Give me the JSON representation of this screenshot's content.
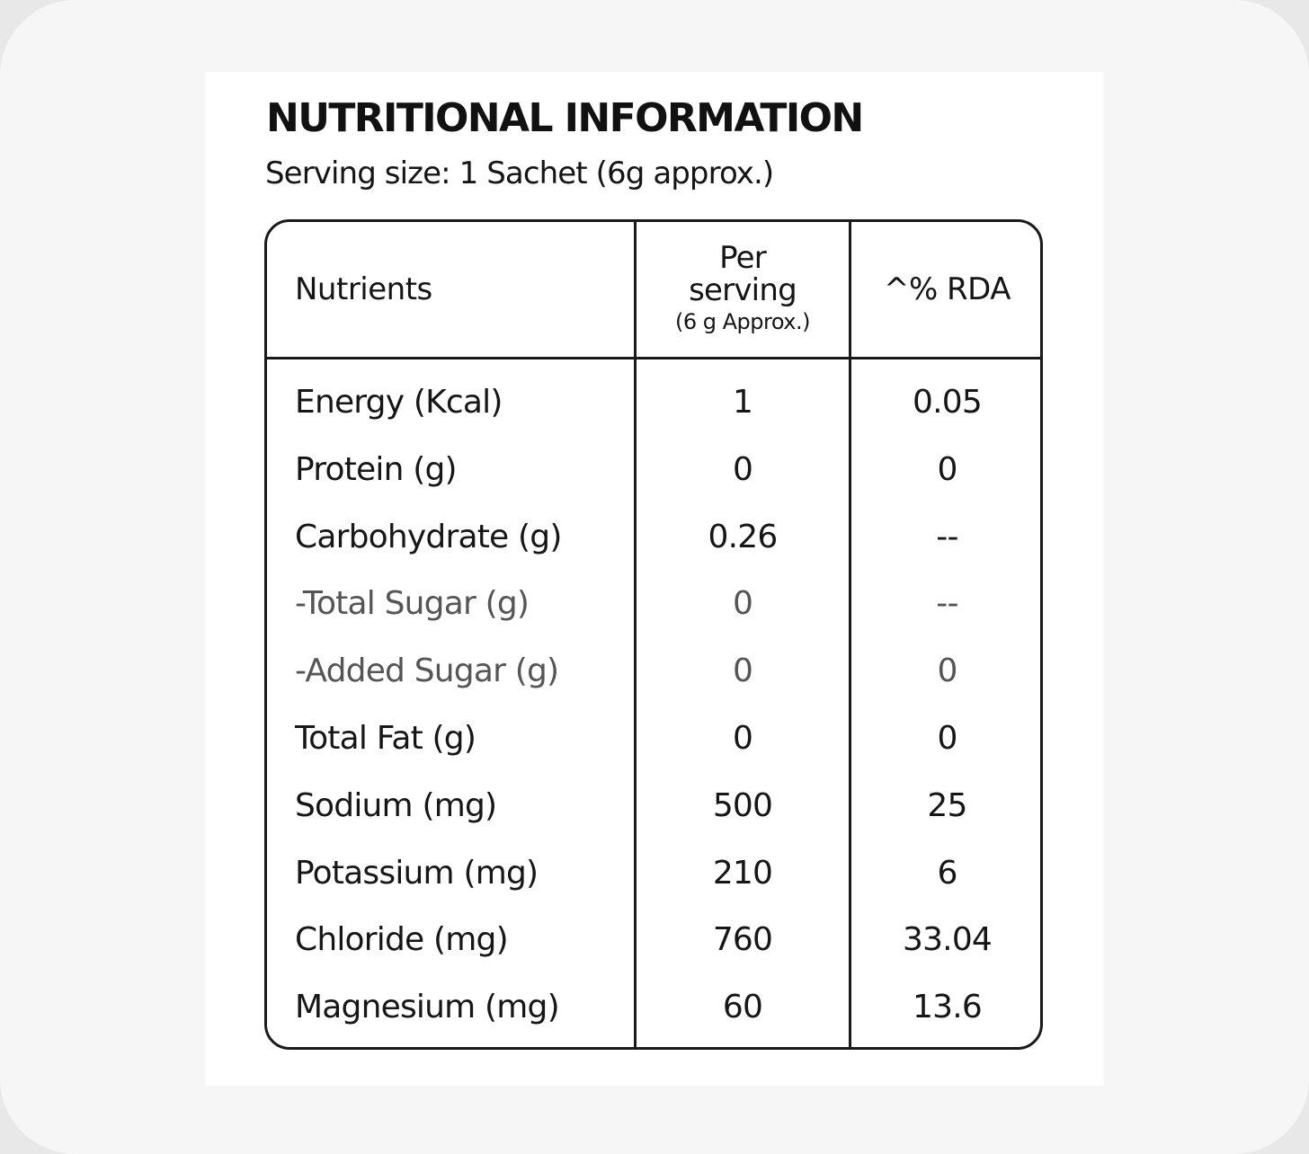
{
  "label": {
    "title": "NUTRITIONAL INFORMATION",
    "serving_size": "Serving size: 1 Sachet (6g approx.)"
  },
  "table": {
    "headers": {
      "nutrients": "Nutrients",
      "per_line1": "Per",
      "per_line2": "serving",
      "per_note": "(6 g Approx.)",
      "rda": "^% RDA"
    },
    "rows": [
      {
        "name": "Energy (Kcal)",
        "per": "1",
        "rda": "0.05"
      },
      {
        "name": "Protein (g)",
        "per": "0",
        "rda": "0"
      },
      {
        "name": "Carbohydrate (g)",
        "per": "0.26",
        "rda": "--"
      },
      {
        "name": "-Total Sugar (g)",
        "per": "0",
        "rda": "--"
      },
      {
        "name": "-Added Sugar (g)",
        "per": "0",
        "rda": "0"
      },
      {
        "name": "Total Fat (g)",
        "per": "0",
        "rda": "0"
      },
      {
        "name": "Sodium (mg)",
        "per": "500",
        "rda": "25"
      },
      {
        "name": "Potassium (mg)",
        "per": "210",
        "rda": "6"
      },
      {
        "name": "Chloride (mg)",
        "per": "760",
        "rda": "33.04"
      },
      {
        "name": "Magnesium (mg)",
        "per": "60",
        "rda": "13.6"
      }
    ]
  }
}
